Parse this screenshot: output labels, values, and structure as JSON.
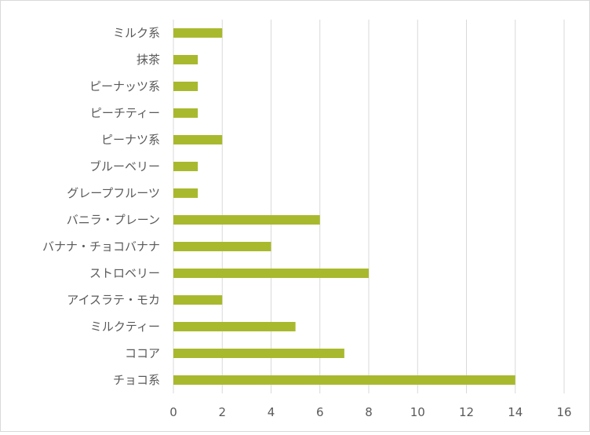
{
  "chart_data": {
    "type": "bar",
    "orientation": "horizontal",
    "categories": [
      "ミルク系",
      "抹茶",
      "ピーナッツ系",
      "ピーチティー",
      "ピーナツ系",
      "ブルーベリー",
      "グレープフルーツ",
      "バニラ・プレーン",
      "バナナ・チョコバナナ",
      "ストロベリー",
      "アイスラテ・モカ",
      "ミルクティー",
      "ココア",
      "チョコ系"
    ],
    "values": [
      2,
      1,
      1,
      1,
      2,
      1,
      1,
      6,
      4,
      8,
      2,
      5,
      7,
      14
    ],
    "xlim": [
      0,
      16
    ],
    "xticks": [
      "0",
      "2",
      "4",
      "6",
      "8",
      "10",
      "12",
      "14",
      "16"
    ],
    "title": "",
    "xlabel": "",
    "ylabel": "",
    "grid": "vertical",
    "legend": "none",
    "bar_color": "#a9b92e",
    "grid_color": "#d9d9d9"
  }
}
